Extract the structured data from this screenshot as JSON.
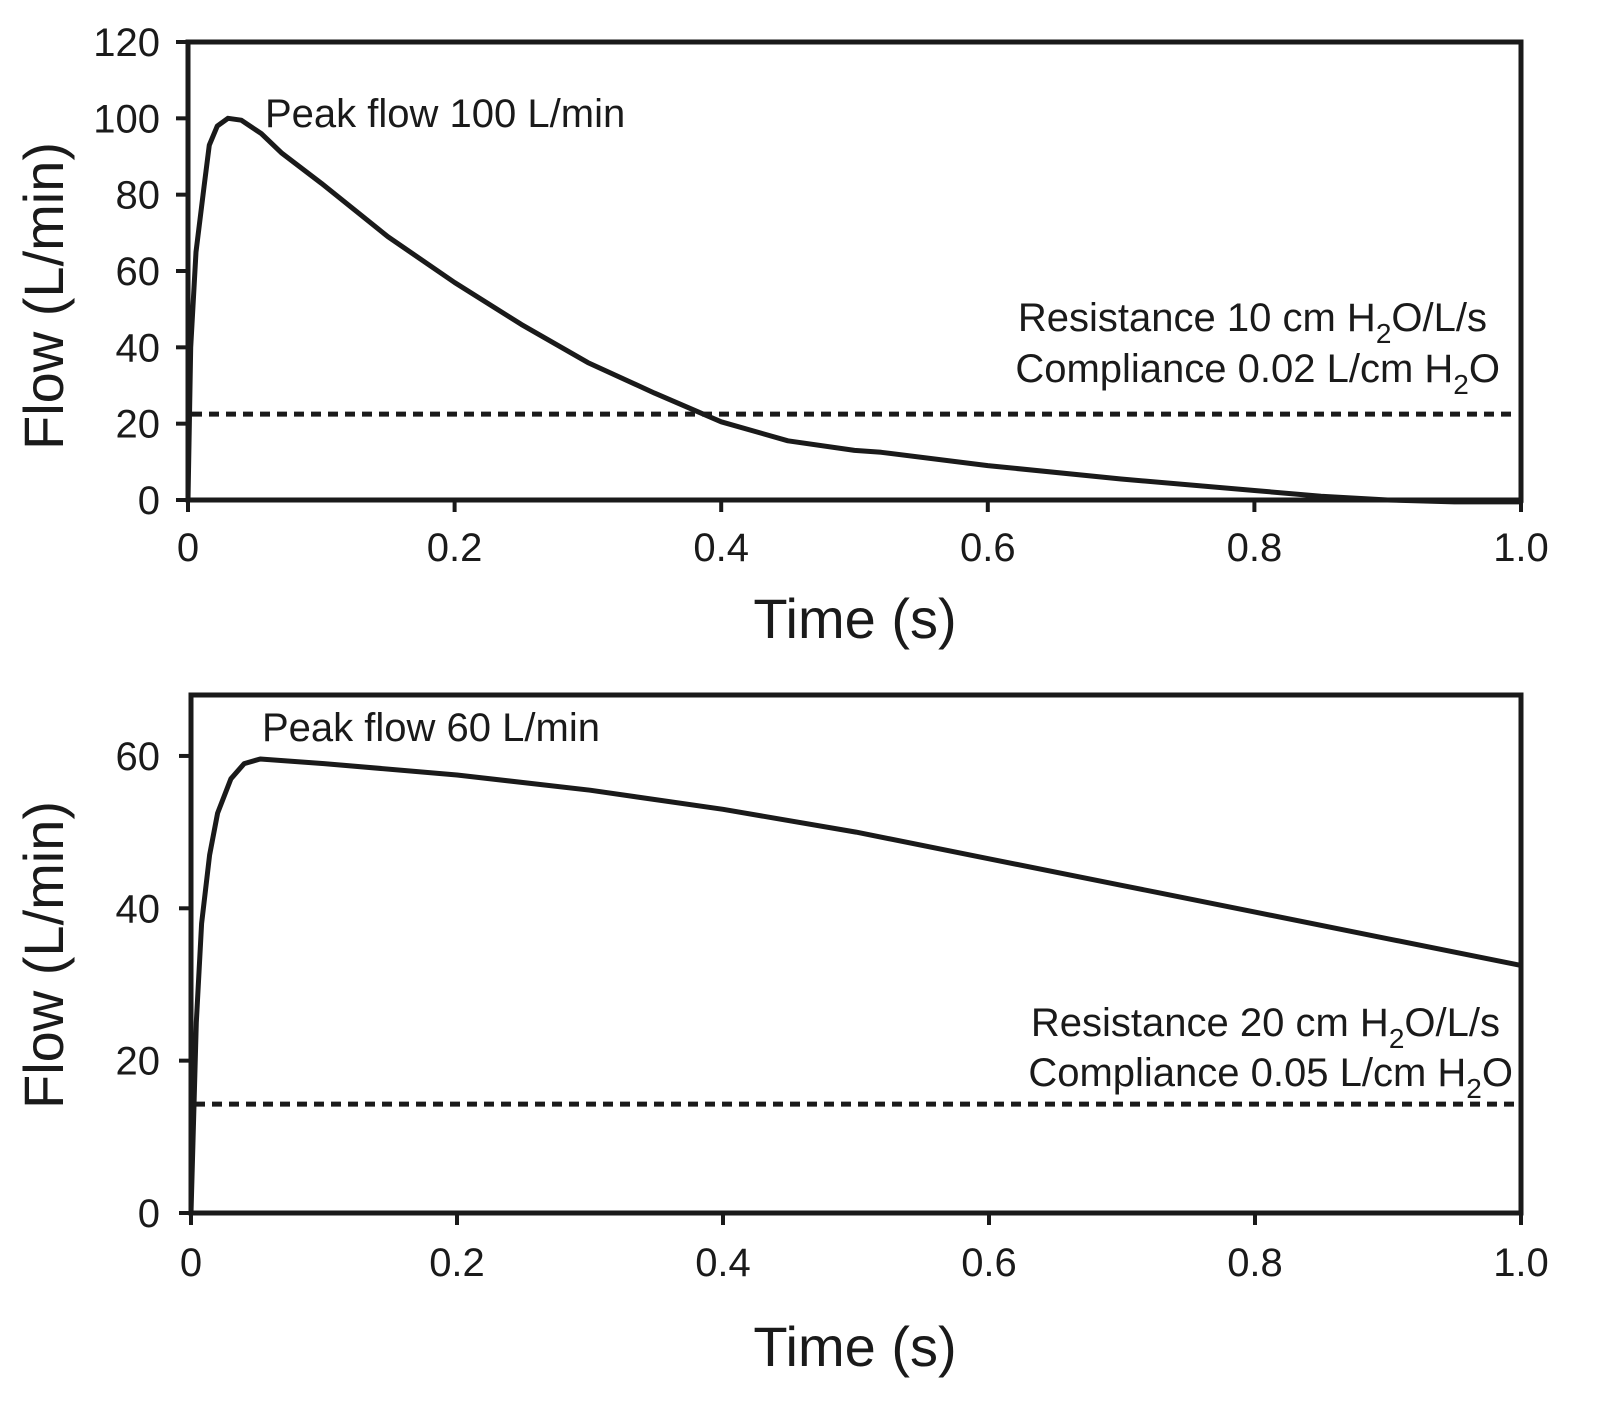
{
  "chart_data": [
    {
      "type": "line",
      "xlabel": "Time (s)",
      "ylabel": "Flow (L/min)",
      "xlim": [
        0,
        1.0
      ],
      "ylim": [
        0,
        120
      ],
      "x_ticks": [
        "0",
        "0.2",
        "0.4",
        "0.6",
        "0.8",
        "1.0"
      ],
      "x_tick_values": [
        0,
        0.2,
        0.4,
        0.6,
        0.8,
        1.0
      ],
      "y_ticks": [
        "0",
        "20",
        "40",
        "60",
        "80",
        "100",
        "120"
      ],
      "y_tick_values": [
        0,
        20,
        40,
        60,
        80,
        100,
        120
      ],
      "grid": false,
      "series": [
        {
          "values_xy": [
            [
              0,
              0
            ],
            [
              0.002,
              40
            ],
            [
              0.006,
              65
            ],
            [
              0.012,
              82
            ],
            [
              0.016,
              93
            ],
            [
              0.022,
              98
            ],
            [
              0.03,
              100
            ],
            [
              0.04,
              99.5
            ],
            [
              0.055,
              96
            ],
            [
              0.07,
              91
            ],
            [
              0.1,
              83
            ],
            [
              0.15,
              69
            ],
            [
              0.2,
              57
            ],
            [
              0.25,
              46
            ],
            [
              0.3,
              36
            ],
            [
              0.35,
              28
            ],
            [
              0.4,
              20.5
            ],
            [
              0.45,
              15.5
            ],
            [
              0.5,
              13
            ],
            [
              0.52,
              12.5
            ],
            [
              0.6,
              9
            ],
            [
              0.7,
              5.5
            ],
            [
              0.8,
              2.5
            ],
            [
              0.85,
              1
            ],
            [
              0.9,
              0
            ],
            [
              0.95,
              -0.5
            ],
            [
              1.0,
              -0.5
            ]
          ]
        }
      ],
      "threshold": 22.5,
      "annotations": {
        "peak": "Peak flow 100 L/min",
        "resistance": {
          "text": "Resistance 10 cm H",
          "sub": "2",
          "rest": "O/L/s"
        },
        "compliance": {
          "text": "Compliance 0.02 L/cm H",
          "sub": "2",
          "rest": "O"
        }
      }
    },
    {
      "type": "line",
      "xlabel": "Time (s)",
      "ylabel": "Flow (L/min)",
      "xlim": [
        0,
        1.0
      ],
      "ylim": [
        0,
        68
      ],
      "x_ticks": [
        "0",
        "0.2",
        "0.4",
        "0.6",
        "0.8",
        "1.0"
      ],
      "x_tick_values": [
        0,
        0.2,
        0.4,
        0.6,
        0.8,
        1.0
      ],
      "y_ticks": [
        "0",
        "20",
        "40",
        "60"
      ],
      "y_tick_values": [
        0,
        20,
        40,
        60
      ],
      "grid": false,
      "series": [
        {
          "values_xy": [
            [
              0,
              0
            ],
            [
              0.004,
              25
            ],
            [
              0.008,
              38
            ],
            [
              0.014,
              47
            ],
            [
              0.02,
              52.5
            ],
            [
              0.03,
              57
            ],
            [
              0.04,
              59
            ],
            [
              0.052,
              59.6
            ],
            [
              0.1,
              59
            ],
            [
              0.2,
              57.5
            ],
            [
              0.3,
              55.5
            ],
            [
              0.4,
              53
            ],
            [
              0.5,
              50
            ],
            [
              0.6,
              46.5
            ],
            [
              0.7,
              43
            ],
            [
              0.8,
              39.5
            ],
            [
              0.9,
              36
            ],
            [
              1.0,
              32.5
            ]
          ]
        }
      ],
      "threshold": 14.3,
      "annotations": {
        "peak": "Peak flow 60 L/min",
        "resistance": {
          "text": "Resistance 20 cm H",
          "sub": "2",
          "rest": "O/L/s"
        },
        "compliance": {
          "text": "Compliance 0.05 L/cm H",
          "sub": "2",
          "rest": "O"
        }
      }
    }
  ]
}
